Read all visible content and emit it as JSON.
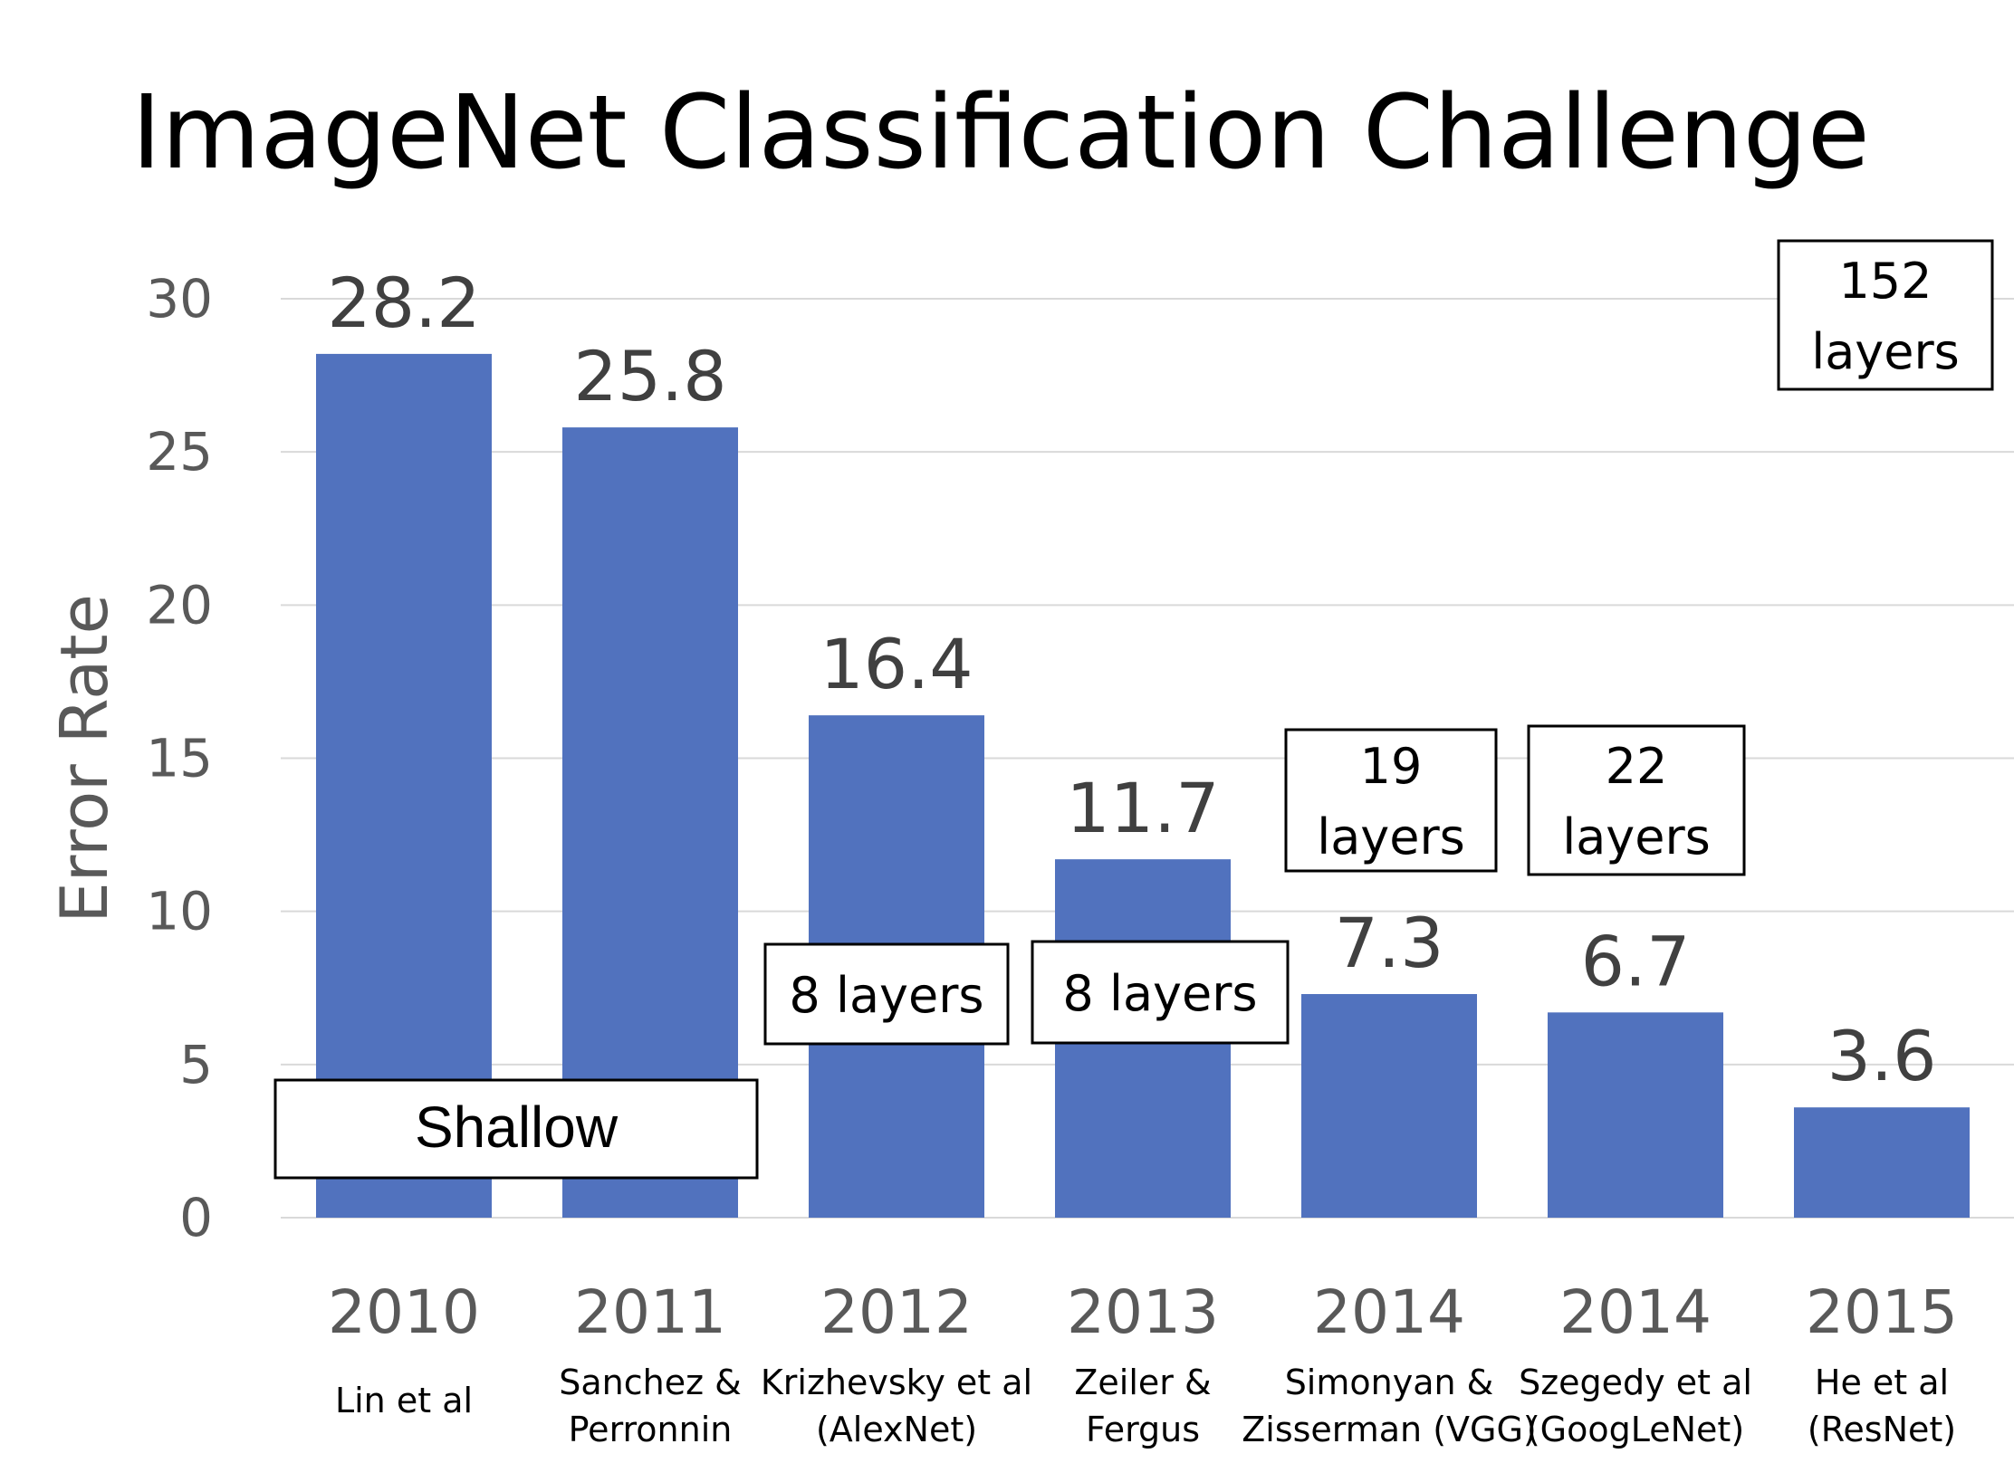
{
  "chart_data": {
    "type": "bar",
    "title": "ImageNet Classification Challenge",
    "ylabel": "Error Rate",
    "xlabel": "",
    "ylim": [
      0,
      30
    ],
    "yticks": [
      0,
      5,
      10,
      15,
      20,
      25,
      30
    ],
    "grid": true,
    "bar_color": "#5172BE",
    "categories": [
      {
        "year": "2010",
        "authors": [
          "Lin et al"
        ]
      },
      {
        "year": "2011",
        "authors": [
          "Sanchez &",
          "Perronnin"
        ]
      },
      {
        "year": "2012",
        "authors": [
          "Krizhevsky et al",
          "(AlexNet)"
        ]
      },
      {
        "year": "2013",
        "authors": [
          "Zeiler &",
          "Fergus"
        ]
      },
      {
        "year": "2014",
        "authors": [
          "Simonyan &",
          "Zisserman (VGG)"
        ]
      },
      {
        "year": "2014",
        "authors": [
          "Szegedy et al",
          "(GoogLeNet)"
        ]
      },
      {
        "year": "2015",
        "authors": [
          "He et al",
          "(ResNet)"
        ]
      }
    ],
    "values": [
      28.2,
      25.8,
      16.4,
      11.7,
      7.3,
      6.7,
      3.6
    ],
    "value_labels": [
      "28.2",
      "25.8",
      "16.4",
      "11.7",
      "7.3",
      "6.7",
      "3.6"
    ],
    "annotations": [
      {
        "id": "shallow",
        "lines": [
          "Shallow"
        ],
        "bars": [
          0,
          1
        ]
      },
      {
        "id": "alexnet-layers",
        "lines": [
          "8 layers"
        ],
        "bars": [
          2
        ]
      },
      {
        "id": "zf-layers",
        "lines": [
          "8 layers"
        ],
        "bars": [
          3
        ]
      },
      {
        "id": "vgg-layers",
        "lines": [
          "19",
          "layers"
        ],
        "bars": [
          4
        ]
      },
      {
        "id": "googlenet-layers",
        "lines": [
          "22",
          "layers"
        ],
        "bars": [
          5
        ]
      },
      {
        "id": "resnet-layers",
        "lines": [
          "152",
          "layers"
        ],
        "bars": [
          6
        ]
      }
    ]
  }
}
